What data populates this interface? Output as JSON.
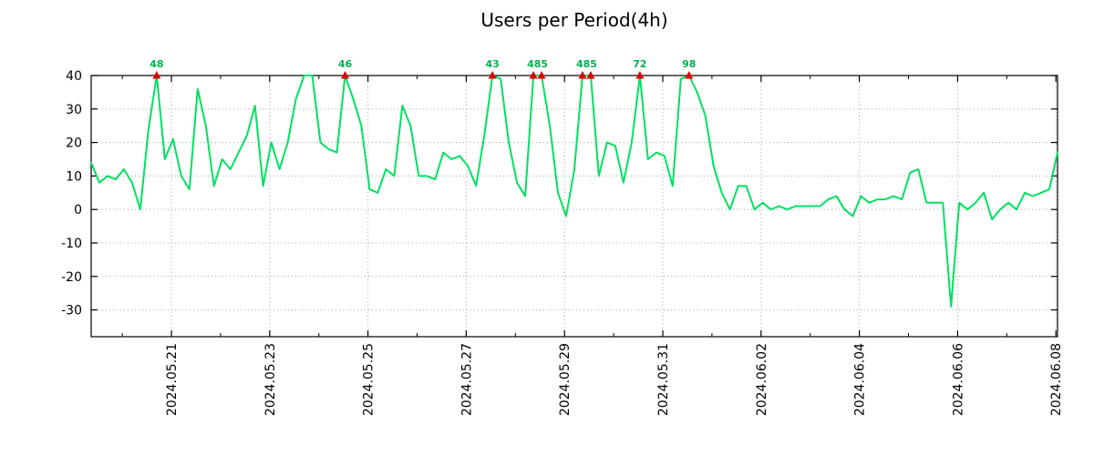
{
  "title": "Users per Period(4h)",
  "chart_data": {
    "type": "line",
    "title": "Users per Period(4h)",
    "series_name": "users",
    "series_color": "#00e060",
    "marker_color": "#dd0000",
    "marker_label_color": "#00b050",
    "grid_color": "#a8a8a8",
    "axis_color": "#000000",
    "background": "#ffffff",
    "ylim": [
      -38,
      40
    ],
    "y_ticks": [
      40,
      30,
      20,
      10,
      0,
      -10,
      -20,
      -30
    ],
    "clip_value": 40,
    "grid": true,
    "legend": "none",
    "x_tick_labels": [
      "2024.05.21",
      "2024.05.23",
      "2024.05.25",
      "2024.05.27",
      "2024.05.29",
      "2024.05.31",
      "2024.06.02",
      "2024.06.04",
      "2024.06.06",
      "2024.06.08"
    ],
    "x_tick_indices": [
      9.8,
      21.8,
      33.8,
      45.8,
      57.8,
      69.8,
      81.8,
      93.8,
      105.8,
      117.8
    ],
    "x_minor_tick_start": 3.8,
    "x_minor_tick_step": 12,
    "values": [
      14,
      8,
      10,
      9,
      12,
      8,
      0,
      24,
      40,
      15,
      21,
      10,
      6,
      36,
      25,
      7,
      15,
      12,
      17,
      22,
      31,
      7,
      20,
      12,
      20,
      33,
      40,
      40,
      20,
      18,
      17,
      40,
      33,
      25,
      6,
      5,
      12,
      10,
      31,
      25,
      10,
      10,
      9,
      17,
      15,
      16,
      13,
      7,
      22,
      40,
      39,
      20,
      8,
      4,
      40,
      40,
      25,
      5,
      -2,
      12,
      40,
      40,
      10,
      20,
      19,
      8,
      20,
      40,
      15,
      17,
      16,
      7,
      39,
      40,
      35,
      28,
      13,
      5,
      0,
      7,
      7,
      0,
      2,
      0,
      1,
      0,
      1,
      1,
      1,
      1,
      3,
      4,
      0,
      -2,
      4,
      2,
      3,
      3,
      4,
      3,
      11,
      12,
      2,
      2,
      2,
      -29,
      2,
      0,
      2,
      5,
      -3,
      0,
      2,
      0,
      5,
      4,
      5,
      6,
      17
    ],
    "peak_markers": [
      {
        "label": "48",
        "indices": [
          8
        ]
      },
      {
        "label": "46",
        "indices": [
          31
        ]
      },
      {
        "label": "43",
        "indices": [
          49
        ]
      },
      {
        "label": "485",
        "indices": [
          54,
          55
        ]
      },
      {
        "label": "485",
        "indices": [
          60,
          61
        ]
      },
      {
        "label": "72",
        "indices": [
          67
        ]
      },
      {
        "label": "98",
        "indices": [
          73
        ]
      }
    ]
  }
}
